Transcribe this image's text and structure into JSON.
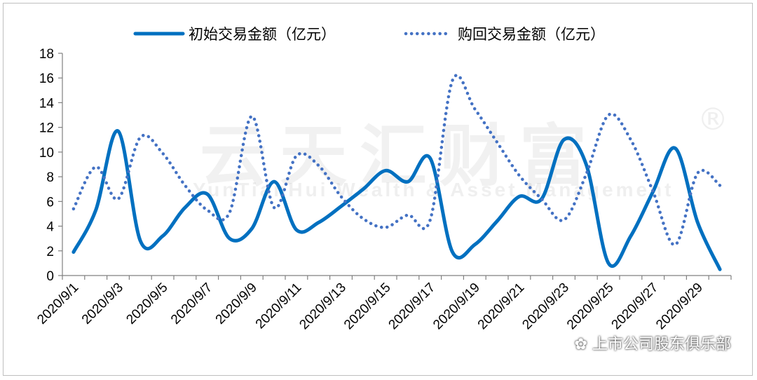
{
  "chart_data": {
    "type": "line",
    "categories": [
      "2020/9/1",
      "2020/9/2",
      "2020/9/3",
      "2020/9/4",
      "2020/9/5",
      "2020/9/6",
      "2020/9/7",
      "2020/9/8",
      "2020/9/9",
      "2020/9/10",
      "2020/9/11",
      "2020/9/12",
      "2020/9/13",
      "2020/9/14",
      "2020/9/15",
      "2020/9/16",
      "2020/9/17",
      "2020/9/18",
      "2020/9/19",
      "2020/9/20",
      "2020/9/21",
      "2020/9/22",
      "2020/9/23",
      "2020/9/24",
      "2020/9/25",
      "2020/9/26",
      "2020/9/27",
      "2020/9/28",
      "2020/9/29",
      "2020/9/30"
    ],
    "tick_labels": [
      "2020/9/1",
      "2020/9/3",
      "2020/9/5",
      "2020/9/7",
      "2020/9/9",
      "2020/9/11",
      "2020/9/13",
      "2020/9/15",
      "2020/9/17",
      "2020/9/19",
      "2020/9/21",
      "2020/9/23",
      "2020/9/25",
      "2020/9/27",
      "2020/9/29"
    ],
    "series": [
      {
        "name": "初始交易金额（亿元）",
        "style": "solid",
        "color": "#0070C0",
        "values": [
          1.9,
          5.3,
          11.7,
          2.8,
          3.2,
          5.5,
          6.6,
          3.0,
          3.8,
          7.6,
          3.7,
          4.3,
          5.6,
          7.0,
          8.5,
          7.6,
          9.5,
          1.9,
          2.5,
          4.4,
          6.4,
          6.2,
          11.0,
          9.0,
          1.0,
          3.2,
          6.8,
          10.3,
          4.3,
          0.5
        ]
      },
      {
        "name": "购回交易金额（亿元）",
        "style": "dotted",
        "color": "#4472C4",
        "values": [
          5.4,
          8.8,
          6.2,
          11.2,
          9.9,
          7.3,
          5.3,
          5.1,
          12.9,
          5.5,
          9.7,
          8.9,
          6.4,
          4.6,
          3.9,
          4.9,
          4.5,
          15.8,
          13.5,
          10.8,
          8.1,
          6.2,
          4.5,
          8.2,
          13.0,
          11.0,
          6.8,
          2.5,
          8.3,
          7.3
        ]
      }
    ],
    "ylim": [
      0,
      18
    ],
    "yticks": [
      0,
      2,
      4,
      6,
      8,
      10,
      12,
      14,
      16,
      18
    ],
    "grid": false,
    "legend_position": "top"
  },
  "watermark": {
    "brand": "云天汇财富",
    "sub": "YunTianHui Wealth & Asset Management",
    "reg": "®",
    "source": "上市公司股东俱乐部"
  }
}
